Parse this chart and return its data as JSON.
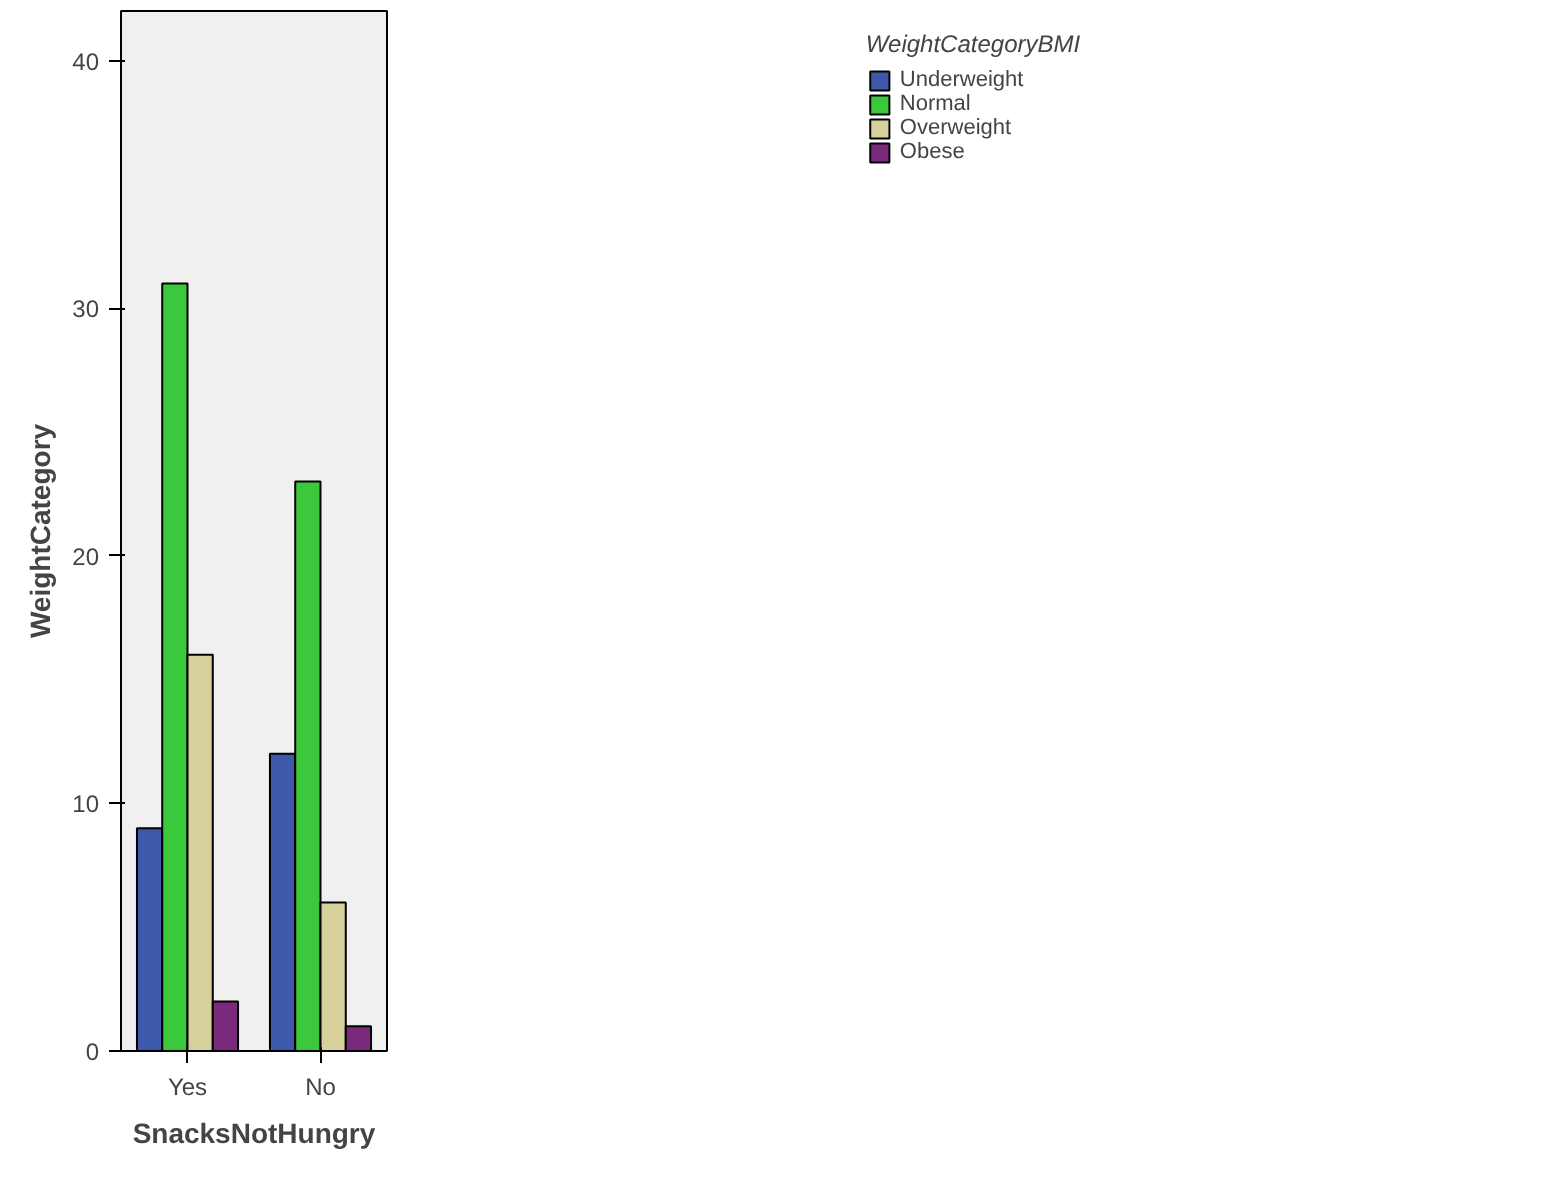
{
  "chart_data": {
    "type": "bar",
    "xlabel": "SnacksNotHungry",
    "ylabel": "WeightCategory",
    "legend_title": "WeightCategoryBMI",
    "categories": [
      "Yes",
      "No"
    ],
    "series": [
      {
        "name": "Underweight",
        "color": "#3e58ac",
        "values": [
          9,
          12
        ]
      },
      {
        "name": "Normal",
        "color": "#3cc83c",
        "values": [
          31,
          23
        ]
      },
      {
        "name": "Overweight",
        "color": "#d6d19a",
        "values": [
          16,
          6
        ]
      },
      {
        "name": "Obese",
        "color": "#7b2a7b",
        "values": [
          2,
          1
        ]
      }
    ],
    "ylim": [
      0,
      42
    ],
    "yticks": [
      0,
      10,
      20,
      30,
      40
    ],
    "grid": false,
    "legend": "top right"
  }
}
